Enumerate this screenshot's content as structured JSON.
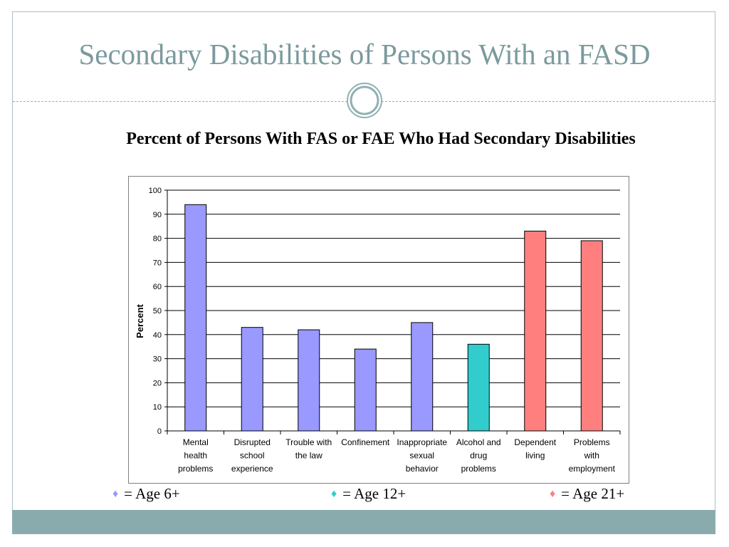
{
  "slide": {
    "title": "Secondary Disabilities of Persons With an FASD",
    "chart_heading": "Percent of Persons With FAS or FAE Who Had Secondary Disabilities"
  },
  "colors": {
    "title": "#7b9a9e",
    "band": "#8aabae",
    "age6": "#9999ff",
    "age12": "#33cccc",
    "age21": "#ff7f7f"
  },
  "legend": [
    {
      "symbol": "♦",
      "label": "= Age 6+",
      "color": "#9999ff"
    },
    {
      "symbol": "♦",
      "label": "= Age 12+",
      "color": "#33cccc"
    },
    {
      "symbol": "♦",
      "label": "= Age 21+",
      "color": "#ff7f7f"
    }
  ],
  "chart_data": {
    "type": "bar",
    "ylabel": "Percent",
    "xlabel": "",
    "ylim": [
      0,
      100
    ],
    "yticks": [
      0,
      10,
      20,
      30,
      40,
      50,
      60,
      70,
      80,
      90,
      100
    ],
    "grid": true,
    "categories": [
      [
        "Mental",
        "health",
        "problems"
      ],
      [
        "Disrupted",
        "school",
        "experience"
      ],
      [
        "Trouble with",
        "the law"
      ],
      [
        "Confinement"
      ],
      [
        "Inappropriate",
        "sexual",
        "behavior"
      ],
      [
        "Alcohol and",
        "drug",
        "problems"
      ],
      [
        "Dependent",
        "living"
      ],
      [
        "Problems",
        "with",
        "employment"
      ]
    ],
    "values": [
      94,
      43,
      42,
      34,
      45,
      36,
      83,
      79
    ],
    "bar_colors": [
      "#9999ff",
      "#9999ff",
      "#9999ff",
      "#9999ff",
      "#9999ff",
      "#33cccc",
      "#ff7f7f",
      "#ff7f7f"
    ]
  }
}
